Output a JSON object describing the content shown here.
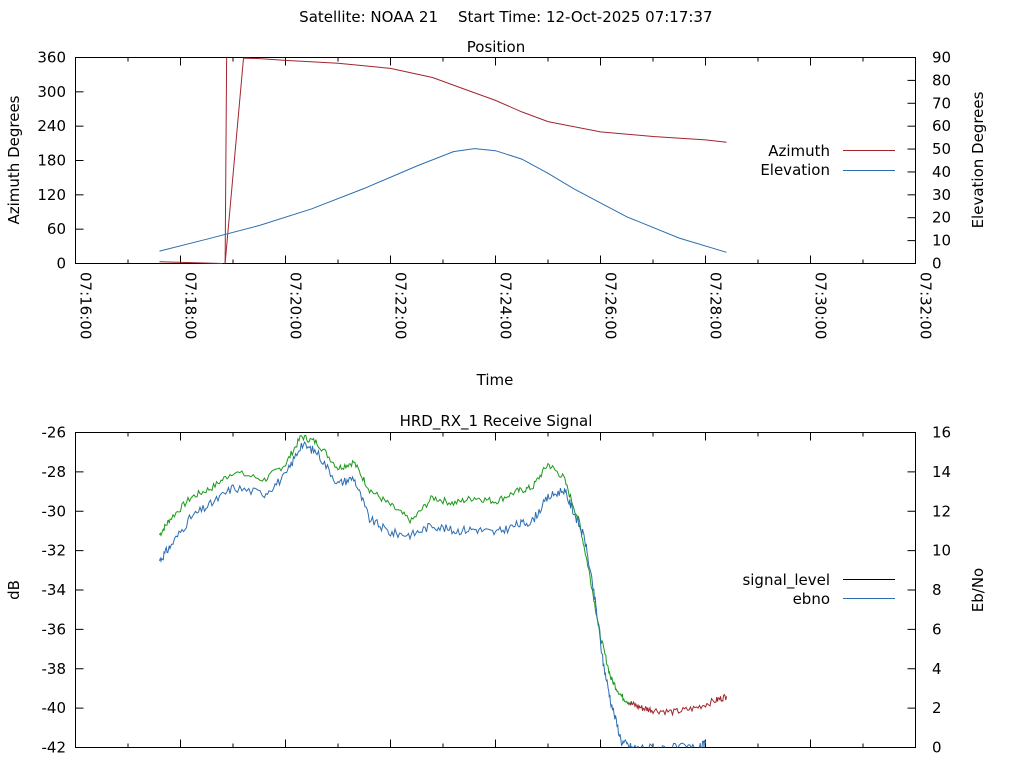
{
  "header": {
    "satellite_label": "Satellite: NOAA 21",
    "start_time_label": "Start Time: 12-Oct-2025 07:17:37"
  },
  "colors": {
    "azimuth": "#a0262e",
    "elevation": "#2d6eb0",
    "signal_level": "#a0262e",
    "signal_level_legend": "#000000",
    "ebno": "#2d6eb0",
    "ebno_upper": "#1a9a1a",
    "axis": "#000000"
  },
  "chart_data": [
    {
      "type": "line",
      "title": "Position",
      "xlabel": "Time",
      "ylabel": "Azimuth Degrees",
      "y2label": "Elevation Degrees",
      "x_ticks": [
        "07:16:00",
        "07:18:00",
        "07:20:00",
        "07:22:00",
        "07:24:00",
        "07:26:00",
        "07:28:00",
        "07:30:00",
        "07:32:00"
      ],
      "x_range_minutes": [
        0,
        16
      ],
      "ylim": [
        0,
        360
      ],
      "y_ticks": [
        0,
        60,
        120,
        180,
        240,
        300,
        360
      ],
      "y2lim": [
        0,
        90
      ],
      "y2_ticks": [
        0,
        10,
        20,
        30,
        40,
        50,
        60,
        70,
        80,
        90
      ],
      "legend_position": "right",
      "series": [
        {
          "name": "Azimuth",
          "axis": "y",
          "x_minutes": [
            1.6,
            2.8,
            2.85,
            3.2,
            3.5,
            4.0,
            5.0,
            6.0,
            6.8,
            7.4,
            8.0,
            8.5,
            9.0,
            10.0,
            11.0,
            12.0,
            12.4
          ],
          "values": [
            3,
            0,
            0,
            359,
            358,
            355,
            350,
            341,
            325,
            305,
            285,
            265,
            248,
            230,
            222,
            216,
            212
          ]
        },
        {
          "name": "Elevation",
          "axis": "y2",
          "x_minutes": [
            1.6,
            2.5,
            3.5,
            4.5,
            5.5,
            6.5,
            7.2,
            7.6,
            8.0,
            8.5,
            9.0,
            9.5,
            10.5,
            11.5,
            12.4
          ],
          "values": [
            5.4,
            10.6,
            16.6,
            23.9,
            32.8,
            42.6,
            48.9,
            50.2,
            49.3,
            45.6,
            39.4,
            32.5,
            20.4,
            11.1,
            4.9
          ]
        }
      ]
    },
    {
      "type": "line",
      "title": "HRD_RX_1 Receive Signal",
      "ylabel": "dB",
      "y2label": "Eb/No",
      "ylim": [
        -42,
        -26
      ],
      "y_ticks": [
        -42,
        -40,
        -38,
        -36,
        -34,
        -32,
        -30,
        -28,
        -26
      ],
      "y2lim": [
        0,
        16
      ],
      "y2_ticks": [
        0,
        2,
        4,
        6,
        8,
        10,
        12,
        14,
        16
      ],
      "x_range_minutes": [
        0,
        16
      ],
      "legend_position": "right",
      "series": [
        {
          "name": "signal_level",
          "axis": "y",
          "x_minutes": [
            1.6,
            1.8,
            2.2,
            2.6,
            3.0,
            3.6,
            4.0,
            4.3,
            4.6,
            5.0,
            5.3,
            5.6,
            6.0,
            6.4,
            6.8,
            7.2,
            7.6,
            8.0,
            8.4,
            8.7,
            9.0,
            9.3,
            9.6,
            9.8,
            10.0,
            10.2,
            10.4,
            10.6,
            10.8,
            11.0,
            11.4,
            11.8,
            12.2,
            12.4
          ],
          "values": [
            -31.2,
            -30.4,
            -29.3,
            -28.8,
            -28.0,
            -28.4,
            -27.6,
            -26.2,
            -26.5,
            -27.8,
            -27.5,
            -28.9,
            -29.7,
            -30.5,
            -29.3,
            -29.6,
            -29.3,
            -29.5,
            -29.0,
            -28.8,
            -27.6,
            -28.3,
            -30.6,
            -33.3,
            -36.4,
            -38.5,
            -39.4,
            -39.8,
            -40.0,
            -40.1,
            -40.2,
            -40.0,
            -39.6,
            -39.4
          ]
        },
        {
          "name": "ebno",
          "axis": "y2",
          "x_minutes": [
            1.6,
            1.8,
            2.2,
            2.6,
            3.0,
            3.6,
            4.0,
            4.3,
            4.6,
            5.0,
            5.3,
            5.6,
            6.0,
            6.4,
            6.8,
            7.2,
            7.6,
            8.0,
            8.4,
            8.7,
            9.0,
            9.3,
            9.5,
            9.7,
            9.9,
            10.05,
            10.2,
            10.4,
            10.6,
            11.0,
            11.5,
            11.9,
            12.0
          ],
          "values": [
            9.5,
            10.2,
            11.7,
            12.4,
            13.2,
            12.9,
            13.8,
            15.4,
            15.0,
            13.4,
            13.7,
            11.6,
            10.9,
            10.8,
            11.3,
            11.0,
            11.1,
            10.9,
            11.3,
            11.5,
            12.7,
            13.1,
            11.9,
            10.6,
            7.4,
            4.3,
            2.3,
            0.3,
            0.0,
            0.0,
            0.0,
            0.0,
            0.2
          ]
        }
      ]
    }
  ]
}
